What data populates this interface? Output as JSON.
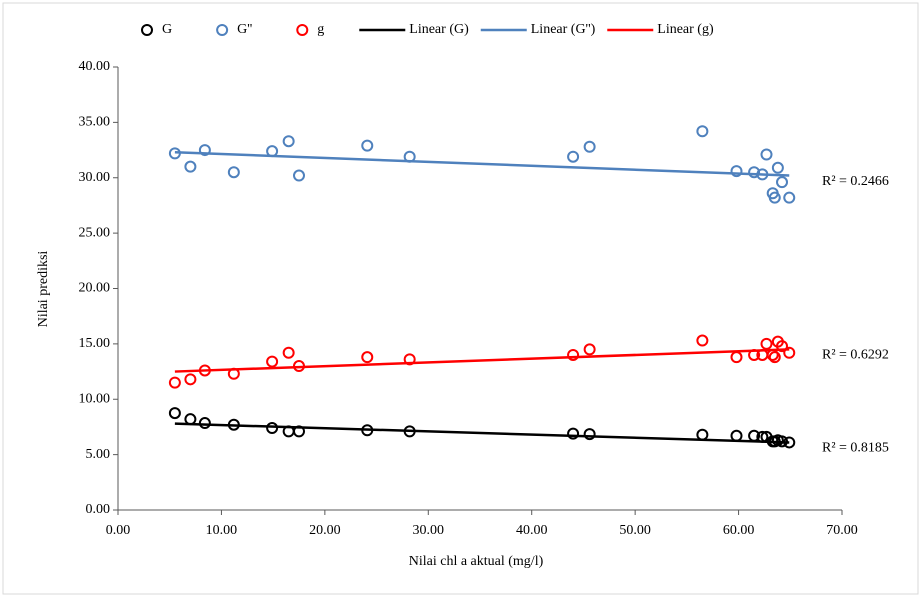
{
  "chart_data": {
    "type": "scatter",
    "xlabel": "Nilai chl a  aktual (mg/l)",
    "ylabel": "Nilai prediksi",
    "x": [
      5.5,
      7.0,
      8.4,
      11.2,
      14.9,
      16.5,
      17.5,
      24.1,
      28.2,
      44.0,
      45.6,
      56.5,
      59.8,
      61.5,
      62.3,
      62.7,
      63.3,
      63.5,
      63.8,
      64.2,
      64.9
    ],
    "series": [
      {
        "name": "G",
        "color": "#000000",
        "values": [
          8.75,
          8.2,
          7.85,
          7.7,
          7.4,
          7.1,
          7.1,
          7.2,
          7.1,
          6.9,
          6.85,
          6.8,
          6.7,
          6.7,
          6.6,
          6.6,
          6.2,
          6.2,
          6.3,
          6.2,
          6.1
        ]
      },
      {
        "name": "G''",
        "color": "#4f81bd",
        "values": [
          32.2,
          31.0,
          32.5,
          30.5,
          32.4,
          33.3,
          30.2,
          32.9,
          31.9,
          31.9,
          32.8,
          34.2,
          30.6,
          30.5,
          30.3,
          32.1,
          28.6,
          28.2,
          30.9,
          29.6,
          28.2
        ]
      },
      {
        "name": "g",
        "color": "#ff0000",
        "values": [
          11.5,
          11.8,
          12.6,
          12.3,
          13.4,
          14.2,
          13.0,
          13.8,
          13.6,
          14.0,
          14.5,
          15.3,
          13.8,
          14.0,
          14.0,
          15.0,
          14.0,
          13.8,
          15.2,
          14.8,
          14.2
        ]
      }
    ],
    "trendlines": [
      {
        "name": "Linear (G)",
        "color": "#000000",
        "x": [
          5.5,
          64.9
        ],
        "values": [
          7.8,
          6.1
        ],
        "label": "R² = 0.8185"
      },
      {
        "name": "Linear (G'')",
        "color": "#4f81bd",
        "x": [
          5.5,
          64.9
        ],
        "values": [
          32.3,
          30.2
        ],
        "label": "R² = 0.2466"
      },
      {
        "name": "Linear (g)",
        "color": "#ff0000",
        "x": [
          5.5,
          64.9
        ],
        "values": [
          12.5,
          14.5
        ],
        "label": "R² = 0.6292"
      }
    ],
    "xlim": [
      0,
      70
    ],
    "xticks": [
      {
        "value": 0,
        "label": "0.00"
      },
      {
        "value": 10,
        "label": "10.00"
      },
      {
        "value": 20,
        "label": "20.00"
      },
      {
        "value": 30,
        "label": "30.00"
      },
      {
        "value": 40,
        "label": "40.00"
      },
      {
        "value": 50,
        "label": "50.00"
      },
      {
        "value": 60,
        "label": "60.00"
      },
      {
        "value": 70,
        "label": "70.00"
      }
    ],
    "ylim": [
      0,
      40
    ],
    "yticks": [
      {
        "value": 0,
        "label": "0.00"
      },
      {
        "value": 5,
        "label": "5.00"
      },
      {
        "value": 10,
        "label": "10.00"
      },
      {
        "value": 15,
        "label": "15.00"
      },
      {
        "value": 20,
        "label": "20.00"
      },
      {
        "value": 25,
        "label": "25.00"
      },
      {
        "value": 30,
        "label": "30.00"
      },
      {
        "value": 35,
        "label": "35.00"
      },
      {
        "value": 40,
        "label": "40.00"
      }
    ]
  }
}
